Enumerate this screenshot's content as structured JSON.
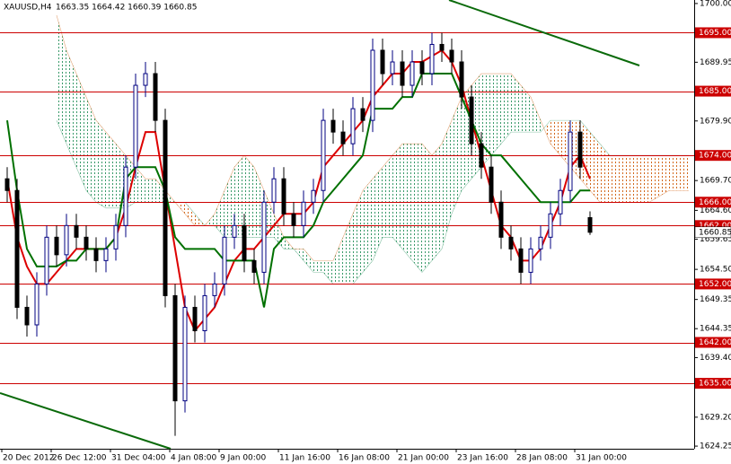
{
  "chart_data": {
    "type": "candlestick",
    "title": "XAUUSD,H4",
    "ohlc_text": "1663.35 1664.42 1660.39 1660.85",
    "up_color": "#000080",
    "down_color": "#000000",
    "ylim": [
      1623.8,
      1700.6
    ],
    "yticks": [
      {
        "value": 1700,
        "label": "1700.00"
      },
      {
        "value": 1689.95,
        "label": "1689.95"
      },
      {
        "value": 1679.9,
        "label": "1679.90"
      },
      {
        "value": 1669.7,
        "label": "1669.70"
      },
      {
        "value": 1664.6,
        "label": "1664.60"
      },
      {
        "value": 1659.65,
        "label": "1659.65"
      },
      {
        "value": 1654.5,
        "label": "1654.50"
      },
      {
        "value": 1649.35,
        "label": "1649.35"
      },
      {
        "value": 1644.35,
        "label": "1644.35"
      },
      {
        "value": 1639.4,
        "label": "1639.40"
      },
      {
        "value": 1629.2,
        "label": "1629.20"
      },
      {
        "value": 1624.25,
        "label": "1624.25"
      }
    ],
    "xticks": [
      {
        "value": 0,
        "label": "20 Dec 2012"
      },
      {
        "value": 5,
        "label": "26 Dec 12:00"
      },
      {
        "value": 11,
        "label": "31 Dec 04:00"
      },
      {
        "value": 17,
        "label": "4 Jan 08:00"
      },
      {
        "value": 22,
        "label": "9 Jan 00:00"
      },
      {
        "value": 28,
        "label": "11 Jan 16:00"
      },
      {
        "value": 34,
        "label": "16 Jan 08:00"
      },
      {
        "value": 40,
        "label": "21 Jan 00:00"
      },
      {
        "value": 46,
        "label": "23 Jan 16:00"
      },
      {
        "value": 52,
        "label": "28 Jan 08:00"
      },
      {
        "value": 58,
        "label": "31 Jan 00:00"
      }
    ],
    "levels": {
      "color": "#cc0000",
      "items": [
        {
          "value": 1695,
          "label": "1695.00"
        },
        {
          "value": 1685,
          "label": "1685.00"
        },
        {
          "value": 1674,
          "label": "1674.00"
        },
        {
          "value": 1666,
          "label": "1666.00"
        },
        {
          "value": 1662,
          "label": "1662.00"
        },
        {
          "value": 1652,
          "label": "1652.00"
        },
        {
          "value": 1642,
          "label": "1642.00"
        },
        {
          "value": 1635,
          "label": "1635.00"
        }
      ]
    },
    "current_price": {
      "value": 1660.85,
      "label": "1660.85"
    },
    "open": [
      1670,
      1668,
      1648,
      1645,
      1652,
      1660,
      1657,
      1662,
      1660,
      1658,
      1656,
      1658,
      1662,
      1672,
      1686,
      1688,
      1680,
      1650,
      1632,
      1648,
      1644,
      1650,
      1652,
      1660,
      1662,
      1656,
      1654,
      1666,
      1670,
      1664,
      1662,
      1666,
      1668,
      1680,
      1678,
      1676,
      1682,
      1680,
      1692,
      1688,
      1690,
      1686,
      1690,
      1688,
      1693,
      1692,
      1690,
      1684,
      1676,
      1672,
      1666,
      1660,
      1658,
      1654,
      1658,
      1660,
      1664,
      1668,
      1678,
      1663.35
    ],
    "high": [
      1672,
      1670,
      1650,
      1654,
      1662,
      1662,
      1664,
      1664,
      1662,
      1660,
      1660,
      1664,
      1674,
      1688,
      1690,
      1690,
      1682,
      1652,
      1650,
      1650,
      1652,
      1654,
      1662,
      1664,
      1664,
      1658,
      1668,
      1672,
      1672,
      1666,
      1668,
      1670,
      1682,
      1682,
      1680,
      1684,
      1684,
      1694,
      1694,
      1692,
      1692,
      1692,
      1692,
      1695,
      1695,
      1694,
      1692,
      1686,
      1678,
      1674,
      1668,
      1662,
      1660,
      1660,
      1662,
      1666,
      1670,
      1680,
      1680,
      1664.42
    ],
    "low": [
      1666,
      1646,
      1643,
      1643,
      1650,
      1655,
      1655,
      1658,
      1656,
      1654,
      1654,
      1656,
      1660,
      1670,
      1684,
      1678,
      1648,
      1626,
      1630,
      1642,
      1642,
      1648,
      1650,
      1658,
      1654,
      1652,
      1652,
      1664,
      1662,
      1660,
      1660,
      1664,
      1666,
      1676,
      1674,
      1674,
      1678,
      1678,
      1686,
      1686,
      1684,
      1684,
      1686,
      1686,
      1690,
      1688,
      1682,
      1674,
      1670,
      1664,
      1658,
      1656,
      1652,
      1652,
      1656,
      1658,
      1662,
      1666,
      1670,
      1660.39
    ],
    "close": [
      1668,
      1648,
      1645,
      1652,
      1660,
      1657,
      1662,
      1660,
      1658,
      1656,
      1658,
      1662,
      1672,
      1686,
      1688,
      1680,
      1650,
      1632,
      1648,
      1644,
      1650,
      1652,
      1660,
      1662,
      1656,
      1654,
      1666,
      1670,
      1664,
      1662,
      1666,
      1668,
      1680,
      1678,
      1676,
      1682,
      1680,
      1692,
      1688,
      1690,
      1686,
      1690,
      1688,
      1693,
      1692,
      1690,
      1684,
      1676,
      1672,
      1666,
      1660,
      1658,
      1654,
      1658,
      1660,
      1664,
      1668,
      1678,
      1672,
      1660.85
    ],
    "lines": [
      {
        "color": "#dd0000",
        "values": [
          1670,
          1660,
          1655,
          1652,
          1652,
          1654,
          1656,
          1658,
          1658,
          1658,
          1658,
          1660,
          1665,
          1672,
          1678,
          1678,
          1668,
          1658,
          1648,
          1644,
          1646,
          1648,
          1652,
          1656,
          1658,
          1658,
          1660,
          1662,
          1664,
          1664,
          1664,
          1666,
          1672,
          1674,
          1676,
          1678,
          1680,
          1684,
          1686,
          1688,
          1688,
          1690,
          1690,
          1691,
          1692,
          1690,
          1686,
          1680,
          1674,
          1668,
          1662,
          1660,
          1656,
          1656,
          1658,
          1662,
          1666,
          1672,
          1674,
          1670
        ]
      },
      {
        "color": "#007000",
        "values": [
          1680,
          1668,
          1658,
          1655,
          1655,
          1655,
          1656,
          1656,
          1658,
          1658,
          1658,
          1660,
          1670,
          1672,
          1672,
          1672,
          1668,
          1660,
          1658,
          1658,
          1658,
          1658,
          1656,
          1656,
          1656,
          1656,
          1648,
          1658,
          1660,
          1660,
          1660,
          1662,
          1666,
          1668,
          1670,
          1672,
          1674,
          1682,
          1682,
          1682,
          1684,
          1684,
          1688,
          1688,
          1688,
          1688,
          1684,
          1680,
          1676,
          1674,
          1674,
          1672,
          1670,
          1668,
          1666,
          1666,
          1666,
          1666,
          1668,
          1668
        ]
      }
    ],
    "cloud": {
      "up_color": "#3a9a6a",
      "down_color": "#d2691e",
      "span_a": [
        null,
        null,
        null,
        null,
        null,
        1698,
        1692,
        1688,
        1684,
        1680,
        1678,
        1676,
        1674,
        1672,
        1670,
        1670,
        1668,
        1666,
        1664,
        1662,
        1662,
        1664,
        1668,
        1672,
        1674,
        1672,
        1668,
        1664,
        1660,
        1658,
        1658,
        1656,
        1656,
        1656,
        1660,
        1664,
        1668,
        1670,
        1672,
        1674,
        1676,
        1676,
        1676,
        1674,
        1676,
        1680,
        1684,
        1686,
        1688,
        1688,
        1688,
        1688,
        1686,
        1684,
        1680,
        1676,
        1674,
        1672,
        1670,
        1668,
        1666,
        1666,
        1666,
        1666,
        1666,
        1666,
        1667,
        1668,
        1668,
        1668
      ],
      "span_b": [
        null,
        null,
        null,
        null,
        null,
        1680,
        1676,
        1672,
        1668,
        1666,
        1665,
        1665,
        1665,
        1666,
        1666,
        1666,
        1666,
        1666,
        1666,
        1664,
        1662,
        1662,
        1660,
        1660,
        1660,
        1660,
        1660,
        1660,
        1658,
        1658,
        1656,
        1654,
        1654,
        1652,
        1652,
        1652,
        1654,
        1656,
        1660,
        1660,
        1658,
        1656,
        1654,
        1656,
        1658,
        1664,
        1668,
        1670,
        1672,
        1674,
        1676,
        1678,
        1678,
        1678,
        1678,
        1680,
        1680,
        1680,
        1680,
        1678,
        1676,
        1674,
        1674,
        1674,
        1674,
        1674,
        1674,
        1674,
        1674,
        1674
      ]
    }
  }
}
